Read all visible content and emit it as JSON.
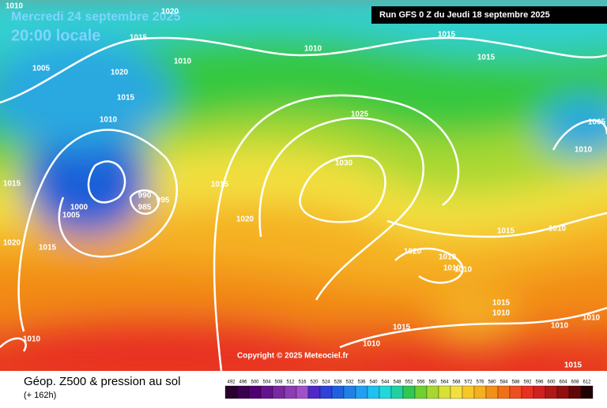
{
  "header": {
    "date": "Mercredi 24 septembre 2025",
    "time": "20:00 locale",
    "run": "Run GFS 0 Z du Jeudi 18 septembre 2025"
  },
  "map": {
    "isobar_labels": [
      1010,
      1020,
      1015,
      1010,
      1015,
      1015,
      1005,
      1010,
      1020,
      1015,
      1010,
      1025,
      1005,
      1010,
      1030,
      1015,
      1015,
      990,
      995,
      985,
      1000,
      1005,
      1020,
      1015,
      1010,
      1020,
      1015,
      1020,
      1010,
      1010,
      1010,
      1015,
      1010,
      1010,
      1010,
      1015,
      1010,
      1010,
      1015
    ],
    "copyright": "Copyright © 2025 Meteociel.fr"
  },
  "footer": {
    "title": "Géop. Z500 & pression au sol",
    "subtitle": "(+ 162h)",
    "scale": [
      492,
      496,
      500,
      504,
      508,
      512,
      516,
      520,
      524,
      528,
      532,
      536,
      540,
      544,
      548,
      552,
      556,
      560,
      564,
      568,
      572,
      576,
      580,
      584,
      588,
      592,
      596,
      600,
      604,
      608,
      612
    ]
  }
}
